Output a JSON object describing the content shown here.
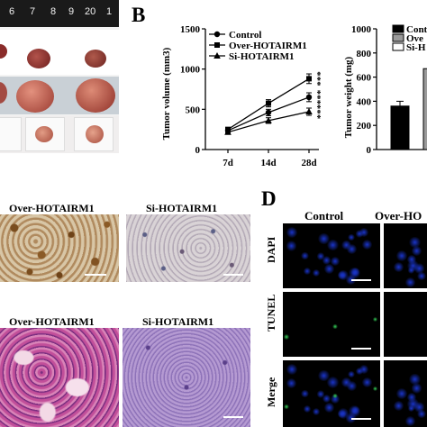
{
  "photo_panel": {
    "ruler_numbers": [
      "6",
      "7",
      "8",
      "9",
      "20",
      "1"
    ]
  },
  "panels": {
    "b_letter": "B",
    "d_letter": "D"
  },
  "chart_data": [
    {
      "type": "line",
      "title": "",
      "xlabel": "",
      "ylabel": "Tumor volume (mm3)",
      "categories": [
        "7d",
        "14d",
        "28d"
      ],
      "ylim": [
        0,
        1500
      ],
      "yticks": [
        0,
        500,
        1000,
        1500
      ],
      "grid": false,
      "legend_position": "top-left",
      "series": [
        {
          "name": "Control",
          "marker": "circle",
          "values": [
            235,
            460,
            650
          ],
          "errors": [
            25,
            40,
            55
          ]
        },
        {
          "name": "Over-HOTAIRM1",
          "marker": "square",
          "values": [
            250,
            575,
            880
          ],
          "errors": [
            25,
            45,
            60
          ]
        },
        {
          "name": "Si-HOTAIRM1",
          "marker": "triangle",
          "values": [
            215,
            360,
            470
          ],
          "errors": [
            20,
            35,
            45
          ]
        }
      ],
      "annotations": [
        "***",
        "***",
        "***"
      ]
    },
    {
      "type": "bar",
      "title": "",
      "xlabel": "",
      "ylabel": "Tumor weight (mg)",
      "ylim": [
        0,
        1000
      ],
      "yticks": [
        0,
        200,
        400,
        600,
        800,
        1000
      ],
      "legend_position": "top",
      "series": [
        {
          "name": "Control",
          "color": "#000000",
          "values": [
            360
          ],
          "errors": [
            40
          ]
        },
        {
          "name": "Ove",
          "color": "#9a9a9a",
          "values": [
            670
          ],
          "errors": [
            0
          ]
        },
        {
          "name": "Si-H",
          "color": "#ffffff",
          "values": [],
          "errors": []
        }
      ]
    }
  ],
  "ihc": {
    "over_label": "Over-HOTAIRM1",
    "si_label": "Si-HOTAIRM1"
  },
  "he": {
    "over_label": "Over-HOTAIRM1",
    "si_label": "Si-HOTAIRM1"
  },
  "fluorescence": {
    "col_control": "Control",
    "col_over": "Over-HO",
    "row_dapi": "DAPI",
    "row_tunel": "TUNEL",
    "row_merge": "Merge"
  },
  "colors": {
    "dapi": "#1a34c8",
    "tunel": "#36d45a"
  }
}
